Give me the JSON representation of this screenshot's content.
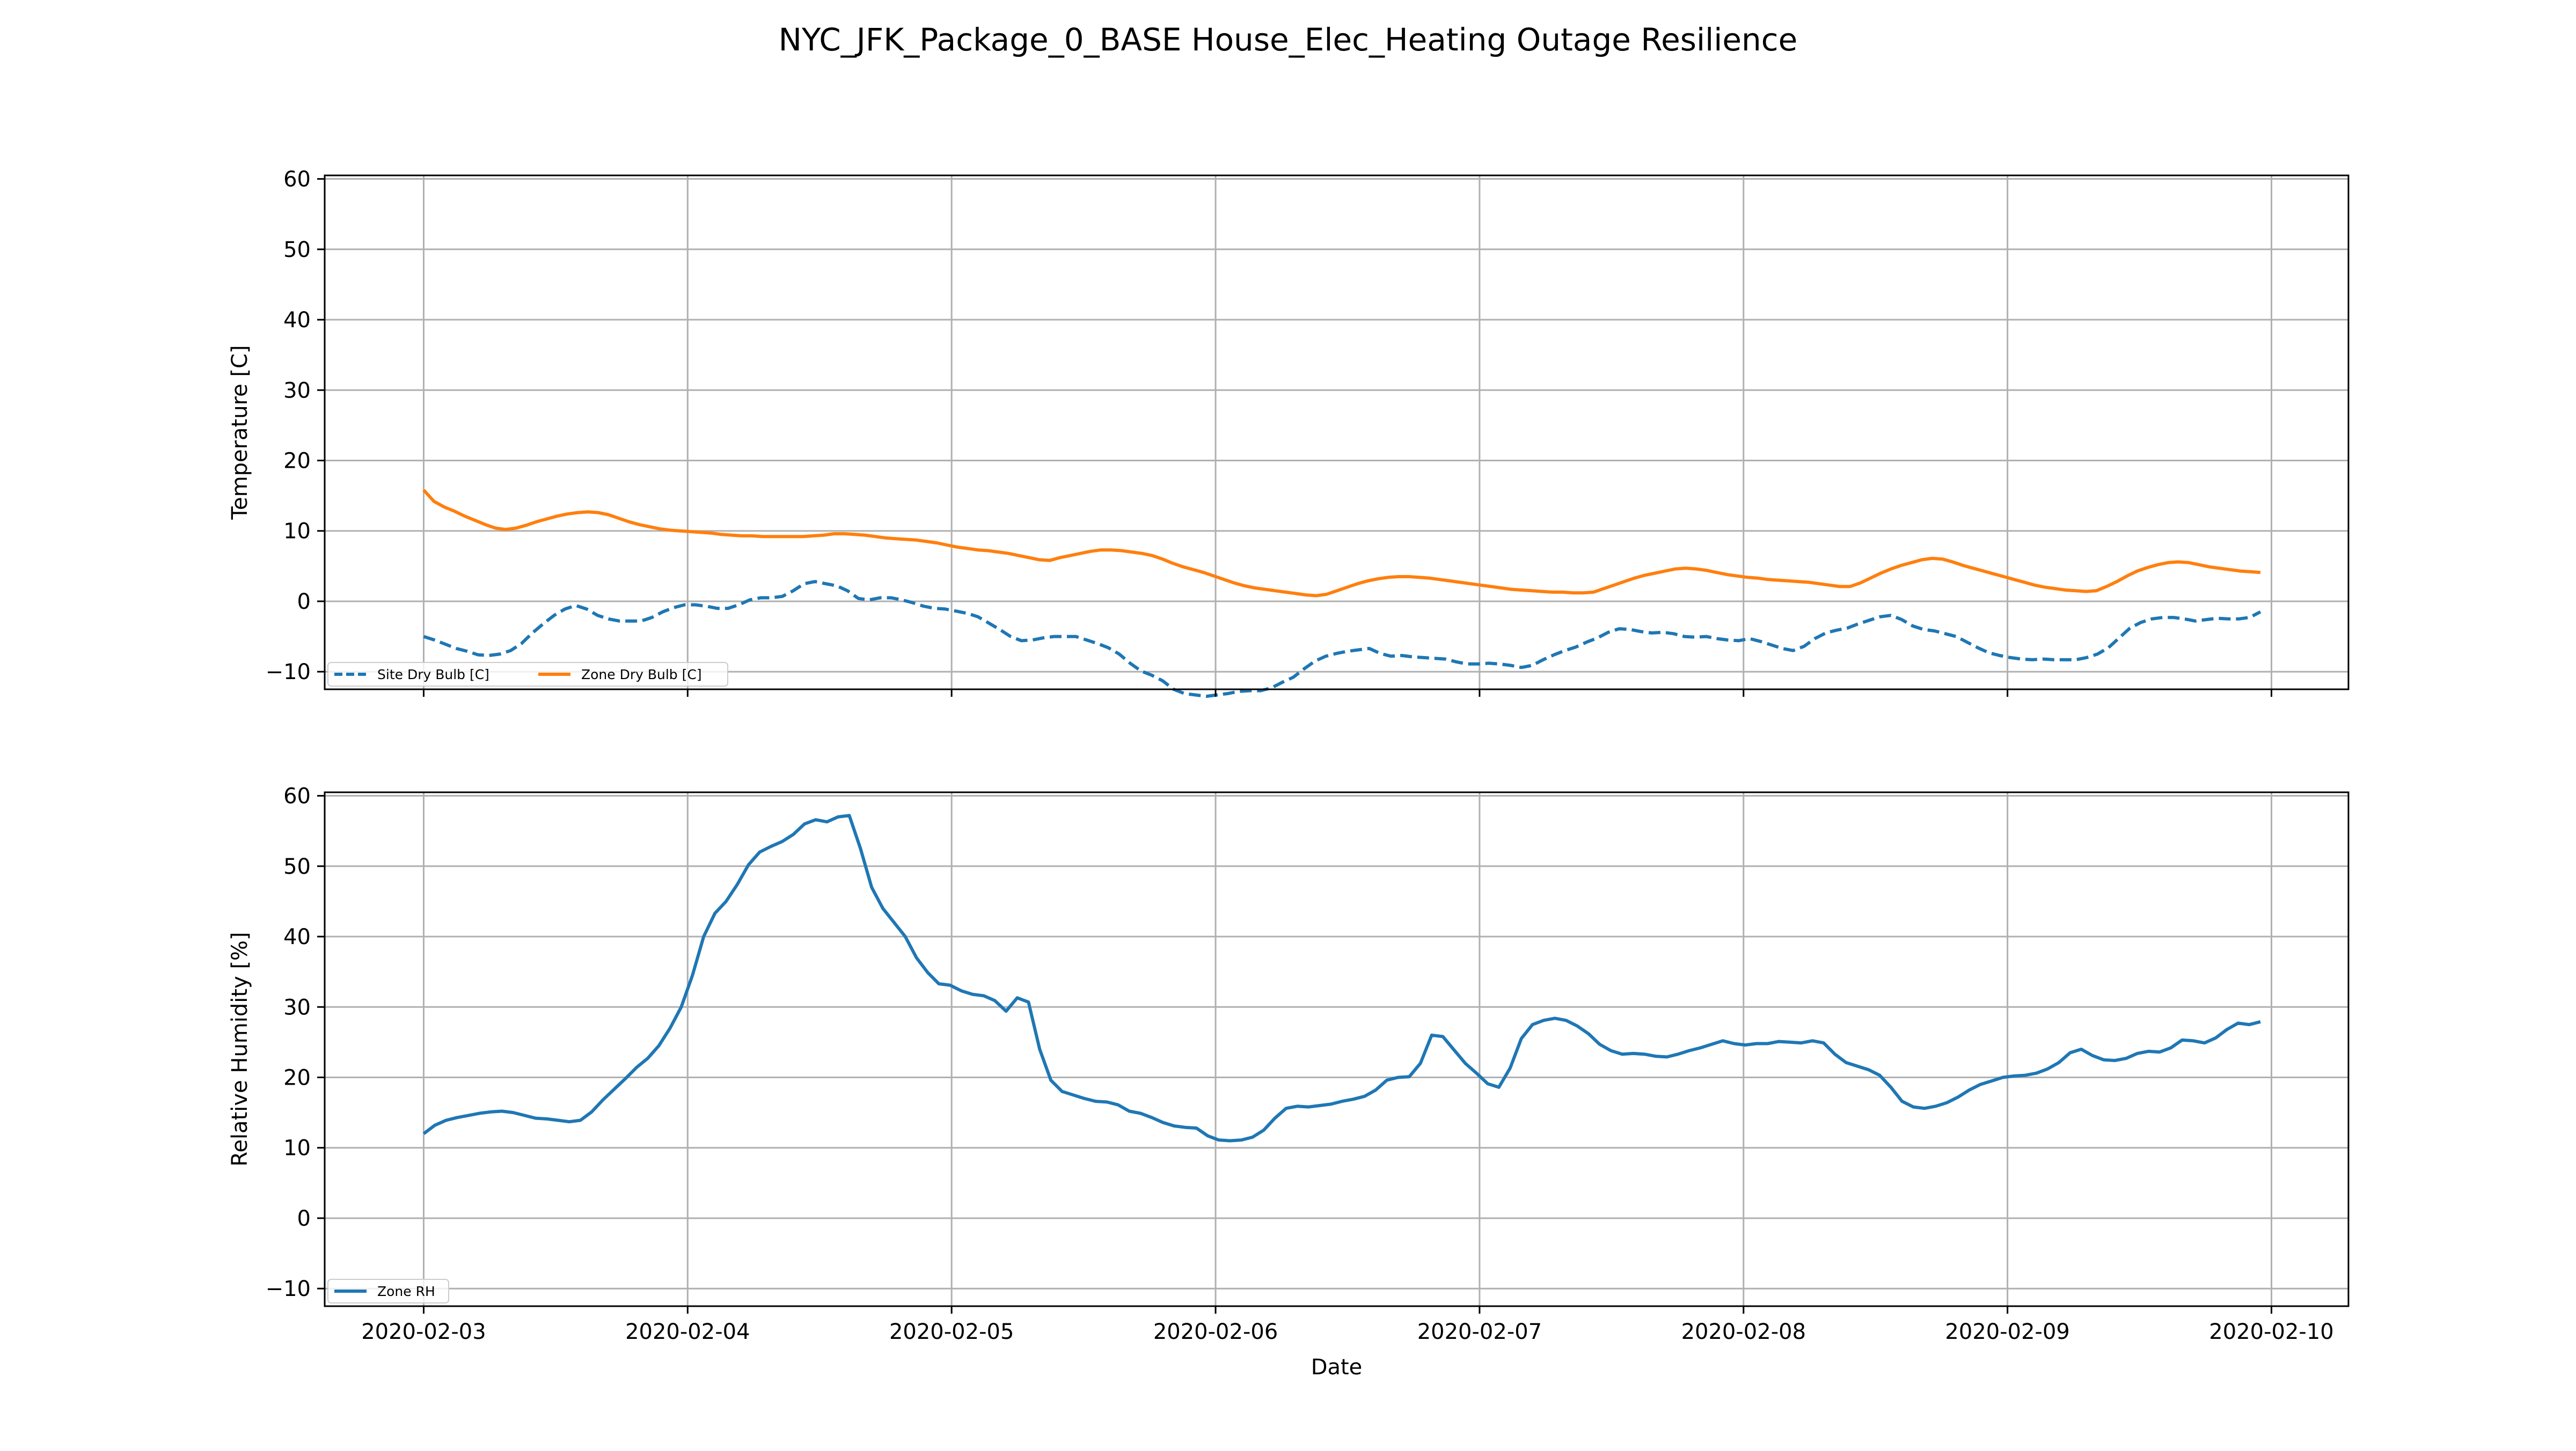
{
  "page": {
    "title": "NYC_JFK_Package_0_BASE House_Elec_Heating Outage Resilience"
  },
  "chart_data": [
    {
      "type": "line",
      "ylabel": "Temperature [C]",
      "xlabel": "",
      "ylim": [
        -12.5,
        60.5
      ],
      "yticks": [
        -10,
        0,
        10,
        20,
        30,
        40,
        50,
        60
      ],
      "ytick_labels": [
        "−10",
        "0",
        "10",
        "20",
        "30",
        "40",
        "50",
        "60"
      ],
      "xlim": [
        "2020-02-02 15:00",
        "2020-02-10 07:00"
      ],
      "xticks": [
        "2020-02-03",
        "2020-02-04",
        "2020-02-05",
        "2020-02-06",
        "2020-02-07",
        "2020-02-08",
        "2020-02-09",
        "2020-02-10"
      ],
      "grid": true,
      "legend": {
        "placement": "lower-left",
        "columns": 2
      },
      "series": [
        {
          "name": "Site Dry Bulb [C]",
          "color": "#1f77b4",
          "style": "dashed",
          "x_start": "2020-02-03 00:00",
          "x_end": "2020-02-09 23:00",
          "values": [
            -5,
            -5.5,
            -6.1,
            -6.7,
            -7.1,
            -7.6,
            -7.7,
            -7.5,
            -7,
            -6,
            -4.5,
            -3.2,
            -2,
            -1.1,
            -0.6,
            -1.1,
            -2,
            -2.5,
            -2.8,
            -2.8,
            -2.8,
            -2.3,
            -1.5,
            -0.9,
            -0.5,
            -0.5,
            -0.7,
            -1,
            -1,
            -0.5,
            0.2,
            0.5,
            0.5,
            0.7,
            1.5,
            2.5,
            2.8,
            2.5,
            2.2,
            1.5,
            0.4,
            0.2,
            0.5,
            0.5,
            0.2,
            -0.2,
            -0.7,
            -1,
            -1.1,
            -1.4,
            -1.7,
            -2.2,
            -3.1,
            -4,
            -5,
            -5.6,
            -5.5,
            -5.2,
            -5,
            -5,
            -5,
            -5.5,
            -6,
            -6.6,
            -7.5,
            -8.8,
            -9.9,
            -10.5,
            -11.3,
            -12.5,
            -13.1,
            -13.3,
            -13.5,
            -13.3,
            -13.1,
            -12.8,
            -12.7,
            -12.7,
            -12.3,
            -11.5,
            -10.8,
            -9.6,
            -8.5,
            -7.8,
            -7.4,
            -7.1,
            -6.9,
            -6.7,
            -7.4,
            -7.8,
            -7.7,
            -7.9,
            -8,
            -8.1,
            -8.2,
            -8.6,
            -8.9,
            -8.9,
            -8.8,
            -8.9,
            -9.1,
            -9.4,
            -9.1,
            -8.3,
            -7.6,
            -7,
            -6.5,
            -5.8,
            -5.2,
            -4.4,
            -3.9,
            -4,
            -4.3,
            -4.5,
            -4.4,
            -4.6,
            -5,
            -5.1,
            -5,
            -5.3,
            -5.5,
            -5.6,
            -5.3,
            -5.7,
            -6.2,
            -6.7,
            -7,
            -6.4,
            -5.3,
            -4.5,
            -4.1,
            -3.8,
            -3.2,
            -2.7,
            -2.2,
            -2,
            -2.6,
            -3.5,
            -4,
            -4.2,
            -4.6,
            -5,
            -5.8,
            -6.6,
            -7.3,
            -7.7,
            -8,
            -8.2,
            -8.3,
            -8.2,
            -8.3,
            -8.3,
            -8.3,
            -8,
            -7.5,
            -6.6,
            -5.2,
            -3.8,
            -3,
            -2.5,
            -2.3,
            -2.3,
            -2.5,
            -2.8,
            -2.6,
            -2.4,
            -2.5,
            -2.5,
            -2.3,
            -1.5
          ]
        },
        {
          "name": "Zone Dry Bulb [C]",
          "color": "#ff7f0e",
          "style": "solid",
          "x_start": "2020-02-03 00:00",
          "x_end": "2020-02-09 23:00",
          "values": [
            15.8,
            14.2,
            13.4,
            12.8,
            12.1,
            11.5,
            10.9,
            10.4,
            10.2,
            10.4,
            10.8,
            11.3,
            11.7,
            12.1,
            12.4,
            12.6,
            12.7,
            12.6,
            12.3,
            11.8,
            11.3,
            10.9,
            10.6,
            10.3,
            10.1,
            10,
            9.9,
            9.8,
            9.7,
            9.5,
            9.4,
            9.3,
            9.3,
            9.2,
            9.2,
            9.2,
            9.2,
            9.2,
            9.3,
            9.4,
            9.6,
            9.6,
            9.5,
            9.4,
            9.2,
            9.0,
            8.9,
            8.8,
            8.7,
            8.5,
            8.3,
            8.0,
            7.7,
            7.5,
            7.3,
            7.2,
            7.0,
            6.8,
            6.5,
            6.2,
            5.9,
            5.8,
            6.2,
            6.5,
            6.8,
            7.1,
            7.3,
            7.3,
            7.2,
            7.0,
            6.8,
            6.5,
            6.0,
            5.4,
            4.9,
            4.5,
            4.1,
            3.6,
            3.1,
            2.6,
            2.2,
            1.9,
            1.7,
            1.5,
            1.3,
            1.1,
            0.9,
            0.8,
            1.0,
            1.5,
            2.0,
            2.5,
            2.9,
            3.2,
            3.4,
            3.5,
            3.5,
            3.4,
            3.3,
            3.1,
            2.9,
            2.7,
            2.5,
            2.3,
            2.1,
            1.9,
            1.7,
            1.6,
            1.5,
            1.4,
            1.3,
            1.3,
            1.2,
            1.2,
            1.3,
            1.8,
            2.3,
            2.8,
            3.3,
            3.7,
            4.0,
            4.3,
            4.6,
            4.7,
            4.6,
            4.4,
            4.1,
            3.8,
            3.6,
            3.4,
            3.3,
            3.1,
            3.0,
            2.9,
            2.8,
            2.7,
            2.5,
            2.3,
            2.1,
            2.1,
            2.6,
            3.3,
            4.0,
            4.6,
            5.1,
            5.5,
            5.9,
            6.1,
            6.0,
            5.6,
            5.1,
            4.7,
            4.3,
            3.9,
            3.5,
            3.1,
            2.7,
            2.3,
            2.0,
            1.8,
            1.6,
            1.5,
            1.4,
            1.5,
            2.1,
            2.8,
            3.6,
            4.3,
            4.8,
            5.2,
            5.5,
            5.6,
            5.5,
            5.2,
            4.9,
            4.7,
            4.5,
            4.3,
            4.2,
            4.1
          ]
        }
      ]
    },
    {
      "type": "line",
      "ylabel": "Relative Humidity [%]",
      "xlabel": "Date",
      "ylim": [
        -12.5,
        60.5
      ],
      "yticks": [
        -10,
        0,
        10,
        20,
        30,
        40,
        50,
        60
      ],
      "ytick_labels": [
        "−10",
        "0",
        "10",
        "20",
        "30",
        "40",
        "50",
        "60"
      ],
      "xlim": [
        "2020-02-02 15:00",
        "2020-02-10 07:00"
      ],
      "xticks": [
        "2020-02-03",
        "2020-02-04",
        "2020-02-05",
        "2020-02-06",
        "2020-02-07",
        "2020-02-08",
        "2020-02-09",
        "2020-02-10"
      ],
      "xtick_labels": [
        "2020-02-03",
        "2020-02-04",
        "2020-02-05",
        "2020-02-06",
        "2020-02-07",
        "2020-02-08",
        "2020-02-09",
        "2020-02-10"
      ],
      "grid": true,
      "legend": {
        "placement": "lower-left",
        "columns": 1
      },
      "series": [
        {
          "name": "Zone RH",
          "color": "#1f77b4",
          "style": "solid",
          "x_start": "2020-02-03 00:00",
          "x_end": "2020-02-09 23:00",
          "values": [
            12,
            13.2,
            13.9,
            14.3,
            14.6,
            14.9,
            15.1,
            15.2,
            15,
            14.6,
            14.2,
            14.1,
            13.9,
            13.7,
            13.9,
            15.1,
            16.8,
            18.3,
            19.8,
            21.4,
            22.7,
            24.5,
            27,
            30,
            34.5,
            40,
            43.3,
            45,
            47.4,
            50.2,
            52,
            52.8,
            53.5,
            54.5,
            56,
            56.6,
            56.3,
            57,
            57.2,
            52.5,
            47,
            44,
            42,
            40,
            37,
            34.9,
            33.3,
            33.1,
            32.3,
            31.8,
            31.6,
            30.9,
            29.4,
            31.3,
            30.7,
            24,
            19.6,
            18,
            17.5,
            17,
            16.6,
            16.5,
            16.1,
            15.2,
            14.9,
            14.3,
            13.6,
            13.1,
            12.9,
            12.8,
            11.7,
            11.1,
            11,
            11.1,
            11.5,
            12.5,
            14.2,
            15.6,
            15.9,
            15.8,
            16,
            16.2,
            16.6,
            16.9,
            17.3,
            18.2,
            19.6,
            20,
            20.1,
            22,
            26,
            25.8,
            23.9,
            22,
            20.6,
            19.1,
            18.6,
            21.3,
            25.5,
            27.5,
            28.1,
            28.4,
            28.1,
            27.3,
            26.2,
            24.7,
            23.8,
            23.3,
            23.4,
            23.3,
            23,
            22.9,
            23.3,
            23.8,
            24.2,
            24.7,
            25.2,
            24.8,
            24.6,
            24.8,
            24.8,
            25.1,
            25,
            24.9,
            25.2,
            24.9,
            23.3,
            22.1,
            21.6,
            21.1,
            20.3,
            18.6,
            16.6,
            15.8,
            15.6,
            15.9,
            16.4,
            17.2,
            18.2,
            19,
            19.5,
            20,
            20.2,
            20.3,
            20.6,
            21.2,
            22.1,
            23.5,
            24,
            23.1,
            22.5,
            22.4,
            22.7,
            23.4,
            23.7,
            23.6,
            24.2,
            25.3,
            25.2,
            24.9,
            25.6,
            26.8,
            27.7,
            27.5,
            27.9
          ]
        }
      ]
    }
  ]
}
